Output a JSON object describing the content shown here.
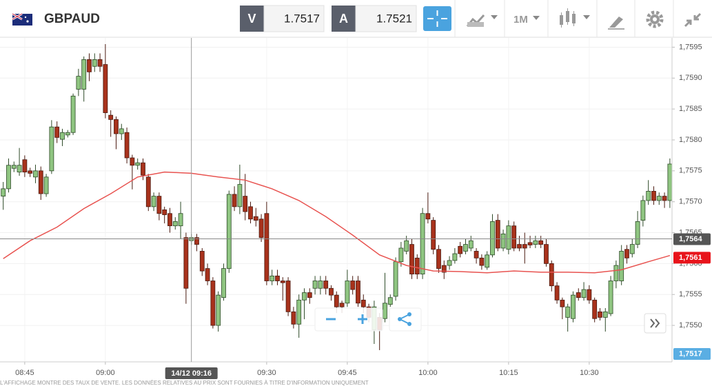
{
  "toolbar": {
    "symbol": "GBPAUD",
    "bid_label": "V",
    "bid": "1.7517",
    "ask_label": "A",
    "ask": "1.7521",
    "timeframe": "1M"
  },
  "chart_data": {
    "type": "candlestick",
    "up_color": "#8fc581",
    "down_color": "#a8321c",
    "grid": true,
    "x": [
      521,
      522,
      523,
      524,
      525,
      526,
      527,
      528,
      529,
      530,
      531,
      532,
      533,
      534,
      535,
      536,
      537,
      538,
      539,
      540,
      541,
      542,
      543,
      544,
      545,
      546,
      547,
      548,
      549,
      550,
      551,
      552,
      553,
      554,
      555,
      556,
      557,
      558,
      559,
      560,
      561,
      562,
      563,
      564,
      565,
      566,
      567,
      568,
      569,
      570,
      571,
      572,
      573,
      574,
      575,
      576,
      577,
      578,
      579,
      580,
      581,
      582,
      583,
      584,
      585,
      586,
      587,
      588,
      589,
      590,
      591,
      592,
      593,
      594,
      595,
      596,
      597,
      598,
      599,
      600,
      601,
      602,
      603,
      604,
      605,
      606,
      607,
      608,
      609,
      610,
      611,
      612,
      613,
      614,
      615,
      616,
      617,
      618,
      619,
      620,
      621,
      622,
      623,
      624,
      625,
      626,
      627,
      628,
      629,
      630,
      631,
      632,
      633,
      634,
      635,
      636,
      637,
      638,
      639,
      640,
      641,
      642,
      643,
      644,
      645
    ],
    "open": [
      1.75709,
      1.75721,
      1.75754,
      1.75748,
      1.75768,
      1.7575,
      1.7574,
      1.7575,
      1.75713,
      1.7575,
      1.75821,
      1.75801,
      1.75808,
      1.75812,
      1.75882,
      1.75882,
      1.7593,
      1.75919,
      1.7593,
      1.75922,
      1.7584,
      1.75833,
      1.7581,
      1.75812,
      1.75771,
      1.75759,
      1.75763,
      1.7574,
      1.75692,
      1.75709,
      1.75687,
      1.75681,
      1.75661,
      1.75661,
      1.75642,
      1.75637,
      1.75642,
      1.7562,
      1.75592,
      1.75572,
      1.755,
      1.75545,
      1.75592,
      1.75712,
      1.75692,
      1.75709,
      1.75692,
      1.75676,
      1.75672,
      1.75681,
      1.75572,
      1.7558,
      1.75572,
      1.75572,
      1.75522,
      1.75502,
      1.75541,
      1.75553,
      1.7556,
      1.7556,
      1.75572,
      1.7556,
      1.75549,
      1.75536,
      1.75536,
      1.75572,
      1.75572,
      1.75541,
      1.7553,
      1.75493,
      1.75513,
      1.75511,
      1.75534,
      1.75547,
      1.75603,
      1.7562,
      1.75631,
      1.75609,
      1.75583,
      1.75681,
      1.7567,
      1.75623,
      1.75597,
      1.75597,
      1.75605,
      1.75628,
      1.7562,
      1.75625,
      1.7562,
      1.75609,
      1.75594,
      1.75614,
      1.7567,
      1.75625,
      1.75623,
      1.75661,
      1.75631,
      1.75631,
      1.75634,
      1.75631,
      1.75637,
      1.75631,
      1.756,
      1.75564,
      1.75541,
      1.75513,
      1.75511,
      1.75553,
      1.75545,
      1.75558,
      1.75541,
      1.75522,
      1.75513,
      1.75519,
      1.75572,
      1.75572,
      1.75623,
      1.75616,
      1.75631,
      1.7567,
      1.75702,
      1.75717,
      1.75702,
      1.75709,
      1.75702
    ],
    "high": [
      1.75732,
      1.7577,
      1.75765,
      1.75787,
      1.75775,
      1.75755,
      1.7576,
      1.75757,
      1.75745,
      1.75832,
      1.7583,
      1.75818,
      1.75816,
      1.75875,
      1.75915,
      1.75935,
      1.7594,
      1.7594,
      1.7594,
      1.75955,
      1.75848,
      1.75838,
      1.75826,
      1.7582,
      1.75776,
      1.7577,
      1.7577,
      1.75745,
      1.75715,
      1.75715,
      1.75692,
      1.7569,
      1.75675,
      1.757,
      1.7565,
      1.75648,
      1.75648,
      1.75625,
      1.756,
      1.75578,
      1.75555,
      1.756,
      1.75718,
      1.75725,
      1.7576,
      1.75745,
      1.757,
      1.7569,
      1.7568,
      1.757,
      1.7559,
      1.7559,
      1.75578,
      1.75578,
      1.7553,
      1.7555,
      1.7556,
      1.7556,
      1.7558,
      1.7558,
      1.7558,
      1.75565,
      1.75555,
      1.7554,
      1.7559,
      1.7558,
      1.7558,
      1.7555,
      1.75535,
      1.7554,
      1.7552,
      1.75585,
      1.7555,
      1.7561,
      1.75635,
      1.75645,
      1.7564,
      1.75615,
      1.7569,
      1.75715,
      1.75675,
      1.7563,
      1.75605,
      1.75612,
      1.75625,
      1.75635,
      1.7564,
      1.75645,
      1.75625,
      1.75615,
      1.7562,
      1.7568,
      1.7568,
      1.75655,
      1.7567,
      1.75668,
      1.75645,
      1.7565,
      1.75645,
      1.75645,
      1.75645,
      1.7564,
      1.75605,
      1.7557,
      1.75545,
      1.75535,
      1.75555,
      1.7556,
      1.7557,
      1.75565,
      1.75545,
      1.75528,
      1.75528,
      1.7558,
      1.75605,
      1.7563,
      1.7563,
      1.7564,
      1.75685,
      1.7571,
      1.75735,
      1.75725,
      1.75715,
      1.75715,
      1.7577
    ],
    "low": [
      1.75687,
      1.75715,
      1.75748,
      1.75742,
      1.7574,
      1.7574,
      1.7573,
      1.75703,
      1.75708,
      1.75745,
      1.75795,
      1.7579,
      1.75804,
      1.75808,
      1.75871,
      1.75862,
      1.75895,
      1.7591,
      1.7591,
      1.75835,
      1.75805,
      1.75785,
      1.758,
      1.75762,
      1.7572,
      1.75752,
      1.75735,
      1.75685,
      1.75685,
      1.7567,
      1.75665,
      1.7565,
      1.75655,
      1.7564,
      1.75535,
      1.7563,
      1.7562,
      1.7558,
      1.75565,
      1.75495,
      1.7549,
      1.7554,
      1.75585,
      1.75685,
      1.7568,
      1.7567,
      1.75665,
      1.7566,
      1.75635,
      1.75565,
      1.75565,
      1.75565,
      1.7554,
      1.75515,
      1.75495,
      1.7548,
      1.7551,
      1.75535,
      1.7555,
      1.7555,
      1.7555,
      1.7554,
      1.7552,
      1.7552,
      1.7553,
      1.7555,
      1.7553,
      1.7552,
      1.75505,
      1.7547,
      1.7546,
      1.75505,
      1.7553,
      1.7554,
      1.75595,
      1.75615,
      1.75575,
      1.75575,
      1.75575,
      1.75665,
      1.75615,
      1.75585,
      1.75575,
      1.7559,
      1.756,
      1.7561,
      1.75615,
      1.7562,
      1.756,
      1.7559,
      1.7559,
      1.7561,
      1.7562,
      1.7562,
      1.75615,
      1.7562,
      1.7562,
      1.756,
      1.75625,
      1.75625,
      1.75625,
      1.75595,
      1.75555,
      1.75535,
      1.7551,
      1.7549,
      1.75505,
      1.7554,
      1.7554,
      1.75535,
      1.75505,
      1.75508,
      1.7549,
      1.75515,
      1.7556,
      1.75565,
      1.756,
      1.7561,
      1.75625,
      1.7566,
      1.75695,
      1.75695,
      1.75695,
      1.7569,
      1.7569
    ],
    "close": [
      1.75721,
      1.75759,
      1.75759,
      1.75759,
      1.75748,
      1.75746,
      1.7575,
      1.75713,
      1.7574,
      1.75821,
      1.75804,
      1.75812,
      1.75812,
      1.75871,
      1.75903,
      1.7593,
      1.7591,
      1.7593,
      1.75919,
      1.75844,
      1.75833,
      1.7581,
      1.75818,
      1.75771,
      1.75759,
      1.75763,
      1.75743,
      1.75692,
      1.75709,
      1.75681,
      1.75679,
      1.75661,
      1.75668,
      1.75681,
      1.7556,
      1.75642,
      1.75631,
      1.75588,
      1.75572,
      1.755,
      1.75549,
      1.75592,
      1.75712,
      1.75692,
      1.75728,
      1.75684,
      1.75672,
      1.7567,
      1.75642,
      1.75572,
      1.7558,
      1.75572,
      1.75569,
      1.75522,
      1.75502,
      1.75541,
      1.75553,
      1.75545,
      1.75572,
      1.75572,
      1.7556,
      1.75549,
      1.7553,
      1.7553,
      1.75572,
      1.75558,
      1.75536,
      1.7553,
      1.75513,
      1.7553,
      1.75493,
      1.75536,
      1.75545,
      1.75603,
      1.75625,
      1.75637,
      1.75583,
      1.75583,
      1.75681,
      1.75672,
      1.75623,
      1.75592,
      1.75586,
      1.75605,
      1.75616,
      1.75616,
      1.75631,
      1.75637,
      1.75609,
      1.75597,
      1.75614,
      1.75668,
      1.75625,
      1.75648,
      1.75661,
      1.75625,
      1.75625,
      1.75625,
      1.7563,
      1.75637,
      1.75631,
      1.756,
      1.75564,
      1.75541,
      1.7553,
      1.7553,
      1.75549,
      1.75545,
      1.75558,
      1.75541,
      1.75511,
      1.75513,
      1.75522,
      1.75572,
      1.75597,
      1.7562,
      1.75609,
      1.75631,
      1.75668,
      1.75702,
      1.75717,
      1.75702,
      1.75709,
      1.75702,
      1.75761
    ],
    "ma": {
      "color": "#e8524f",
      "x": [
        521,
        526,
        531,
        536,
        541,
        546,
        551,
        556,
        561,
        566,
        571,
        576,
        581,
        586,
        591,
        596,
        601,
        606,
        611,
        616,
        621,
        626,
        631,
        636,
        641,
        645
      ],
      "values": [
        1.75608,
        1.75637,
        1.75659,
        1.75689,
        1.75713,
        1.7574,
        1.75748,
        1.75746,
        1.7574,
        1.75735,
        1.75721,
        1.75702,
        1.75676,
        1.75646,
        1.75614,
        1.75597,
        1.75588,
        1.75587,
        1.75585,
        1.75588,
        1.75586,
        1.75586,
        1.75585,
        1.7559,
        1.75603,
        1.75613
      ]
    },
    "xlim": [
      520.4,
      645.4
    ],
    "xticks": [
      {
        "value": 525,
        "label": "08:45"
      },
      {
        "value": 540,
        "label": "09:00"
      },
      {
        "value": 570,
        "label": "09:30"
      },
      {
        "value": 585,
        "label": "09:45"
      },
      {
        "value": 600,
        "label": "10:00"
      },
      {
        "value": 615,
        "label": "10:15"
      },
      {
        "value": 630,
        "label": "10:30"
      }
    ],
    "ylim": [
      1.75441,
      1.75965
    ],
    "yticks": [
      {
        "value": 1.755,
        "label": "1,7550"
      },
      {
        "value": 1.7555,
        "label": "1,7555"
      },
      {
        "value": 1.756,
        "label": "1,7560"
      },
      {
        "value": 1.7565,
        "label": "1,7565"
      },
      {
        "value": 1.757,
        "label": "1,7570"
      },
      {
        "value": 1.7575,
        "label": "1,7575"
      },
      {
        "value": 1.758,
        "label": "1,7580"
      },
      {
        "value": 1.7585,
        "label": "1,7585"
      },
      {
        "value": 1.759,
        "label": "1,7590"
      },
      {
        "value": 1.7595,
        "label": "1,7595"
      }
    ],
    "crosshair": {
      "x": 556,
      "x_label": "14/12 09:16",
      "y": 1.7564,
      "y_label": "1,7564"
    },
    "ma_tag": {
      "value": 1.7561,
      "label": "1,7561",
      "color": "#e8141b"
    },
    "bid_tag": {
      "value": 1.7517,
      "label": "1,7517",
      "color": "#5aaee3"
    }
  },
  "disclaimer": "L'AFFICHAGE MONTRE DES TAUX DE VENTE. LES DONNÉES RELATIVES AU PRIX SONT FOURNIES À TITRE D'INFORMATION UNIQUEMENT"
}
